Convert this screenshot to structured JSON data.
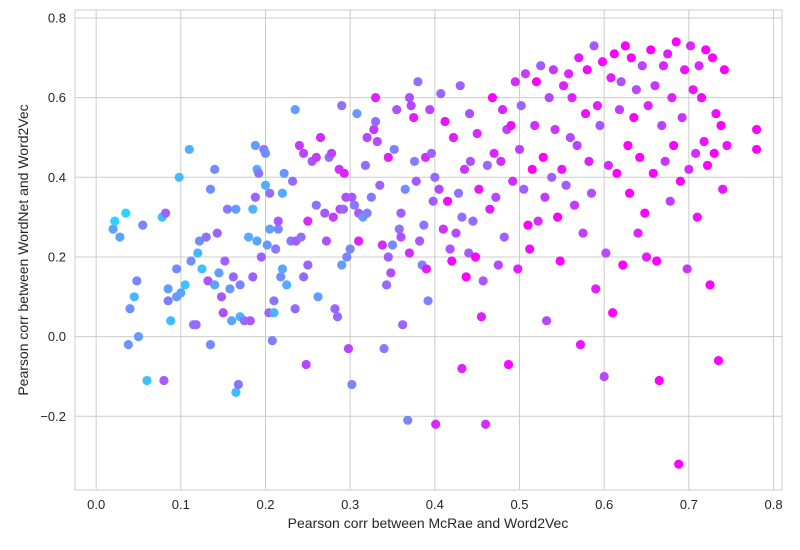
{
  "chart_data": {
    "type": "scatter",
    "title": "",
    "xlabel": "Pearson corr between McRae and Word2Vec",
    "ylabel": "Pearson corr between WordNet and Word2Vec",
    "xlim": [
      -0.025,
      0.81
    ],
    "ylim": [
      -0.385,
      0.82
    ],
    "xticks": [
      0.0,
      0.1,
      0.2,
      0.3,
      0.4,
      0.5,
      0.6,
      0.7,
      0.8
    ],
    "xtick_labels": [
      "0.0",
      "0.1",
      "0.2",
      "0.3",
      "0.4",
      "0.5",
      "0.6",
      "0.7",
      "0.8"
    ],
    "yticks": [
      -0.2,
      0.0,
      0.2,
      0.4,
      0.6,
      0.8
    ],
    "ytick_labels": [
      "−0.2",
      "0.0",
      "0.2",
      "0.4",
      "0.6",
      "0.8"
    ],
    "grid": true,
    "colormap": "cool",
    "colormap_start": "#00ffff",
    "colormap_end": "#ff00ff",
    "background_color": "#ffffff",
    "grid_color": "#cccccc",
    "points": [
      [
        0.02,
        0.27
      ],
      [
        0.022,
        0.29
      ],
      [
        0.028,
        0.25
      ],
      [
        0.035,
        0.31
      ],
      [
        0.04,
        0.07
      ],
      [
        0.045,
        0.1
      ],
      [
        0.048,
        0.14
      ],
      [
        0.05,
        0.0
      ],
      [
        0.055,
        0.28
      ],
      [
        0.038,
        -0.02
      ],
      [
        0.06,
        -0.11
      ],
      [
        0.08,
        -0.11
      ],
      [
        0.078,
        0.3
      ],
      [
        0.082,
        0.31
      ],
      [
        0.085,
        0.12
      ],
      [
        0.085,
        0.09
      ],
      [
        0.088,
        0.04
      ],
      [
        0.095,
        0.1
      ],
      [
        0.095,
        0.17
      ],
      [
        0.098,
        0.4
      ],
      [
        0.1,
        0.11
      ],
      [
        0.105,
        0.13
      ],
      [
        0.11,
        0.47
      ],
      [
        0.112,
        0.19
      ],
      [
        0.115,
        0.03
      ],
      [
        0.118,
        0.03
      ],
      [
        0.12,
        0.21
      ],
      [
        0.122,
        0.24
      ],
      [
        0.125,
        0.17
      ],
      [
        0.13,
        0.25
      ],
      [
        0.132,
        0.14
      ],
      [
        0.135,
        -0.02
      ],
      [
        0.135,
        0.37
      ],
      [
        0.14,
        0.42
      ],
      [
        0.14,
        0.13
      ],
      [
        0.143,
        0.26
      ],
      [
        0.145,
        0.16
      ],
      [
        0.148,
        0.1
      ],
      [
        0.15,
        0.06
      ],
      [
        0.152,
        0.19
      ],
      [
        0.155,
        0.32
      ],
      [
        0.158,
        0.12
      ],
      [
        0.16,
        0.04
      ],
      [
        0.162,
        0.15
      ],
      [
        0.165,
        0.32
      ],
      [
        0.165,
        -0.14
      ],
      [
        0.168,
        -0.12
      ],
      [
        0.17,
        0.05
      ],
      [
        0.17,
        0.13
      ],
      [
        0.175,
        0.04
      ],
      [
        0.18,
        0.25
      ],
      [
        0.182,
        0.04
      ],
      [
        0.185,
        0.32
      ],
      [
        0.185,
        0.15
      ],
      [
        0.188,
        0.35
      ],
      [
        0.188,
        0.48
      ],
      [
        0.19,
        0.24
      ],
      [
        0.19,
        0.42
      ],
      [
        0.192,
        0.41
      ],
      [
        0.195,
        0.2
      ],
      [
        0.198,
        0.47
      ],
      [
        0.2,
        0.46
      ],
      [
        0.2,
        0.38
      ],
      [
        0.202,
        0.23
      ],
      [
        0.204,
        0.06
      ],
      [
        0.205,
        0.27
      ],
      [
        0.205,
        0.36
      ],
      [
        0.208,
        -0.01
      ],
      [
        0.21,
        0.09
      ],
      [
        0.21,
        0.06
      ],
      [
        0.212,
        0.22
      ],
      [
        0.215,
        0.27
      ],
      [
        0.215,
        0.29
      ],
      [
        0.218,
        0.15
      ],
      [
        0.22,
        0.36
      ],
      [
        0.22,
        0.17
      ],
      [
        0.222,
        0.41
      ],
      [
        0.225,
        0.13
      ],
      [
        0.23,
        0.24
      ],
      [
        0.232,
        0.39
      ],
      [
        0.235,
        0.07
      ],
      [
        0.235,
        0.57
      ],
      [
        0.236,
        0.24
      ],
      [
        0.24,
        0.48
      ],
      [
        0.242,
        0.25
      ],
      [
        0.245,
        0.46
      ],
      [
        0.245,
        0.15
      ],
      [
        0.248,
        -0.07
      ],
      [
        0.25,
        0.18
      ],
      [
        0.25,
        0.29
      ],
      [
        0.255,
        0.44
      ],
      [
        0.26,
        0.45
      ],
      [
        0.26,
        0.33
      ],
      [
        0.262,
        0.1
      ],
      [
        0.265,
        0.5
      ],
      [
        0.27,
        0.31
      ],
      [
        0.272,
        0.24
      ],
      [
        0.275,
        0.45
      ],
      [
        0.278,
        0.46
      ],
      [
        0.28,
        0.3
      ],
      [
        0.282,
        0.07
      ],
      [
        0.285,
        0.05
      ],
      [
        0.287,
        0.42
      ],
      [
        0.288,
        0.32
      ],
      [
        0.29,
        0.18
      ],
      [
        0.29,
        0.58
      ],
      [
        0.292,
        0.32
      ],
      [
        0.293,
        0.41
      ],
      [
        0.295,
        0.35
      ],
      [
        0.296,
        0.2
      ],
      [
        0.298,
        -0.03
      ],
      [
        0.3,
        0.22
      ],
      [
        0.302,
        -0.12
      ],
      [
        0.302,
        0.35
      ],
      [
        0.305,
        0.33
      ],
      [
        0.308,
        0.56
      ],
      [
        0.31,
        0.24
      ],
      [
        0.31,
        0.31
      ],
      [
        0.315,
        0.3
      ],
      [
        0.318,
        0.43
      ],
      [
        0.32,
        0.31
      ],
      [
        0.32,
        0.5
      ],
      [
        0.325,
        0.35
      ],
      [
        0.328,
        0.52
      ],
      [
        0.33,
        0.54
      ],
      [
        0.33,
        0.6
      ],
      [
        0.332,
        0.49
      ],
      [
        0.335,
        0.38
      ],
      [
        0.338,
        0.23
      ],
      [
        0.34,
        -0.03
      ],
      [
        0.343,
        0.13
      ],
      [
        0.345,
        0.2
      ],
      [
        0.345,
        0.45
      ],
      [
        0.348,
        0.16
      ],
      [
        0.35,
        0.23
      ],
      [
        0.352,
        0.47
      ],
      [
        0.355,
        0.57
      ],
      [
        0.358,
        0.27
      ],
      [
        0.36,
        0.31
      ],
      [
        0.36,
        0.25
      ],
      [
        0.362,
        0.03
      ],
      [
        0.365,
        0.37
      ],
      [
        0.368,
        -0.21
      ],
      [
        0.37,
        0.21
      ],
      [
        0.37,
        0.6
      ],
      [
        0.372,
        0.58
      ],
      [
        0.375,
        0.55
      ],
      [
        0.376,
        0.44
      ],
      [
        0.378,
        0.39
      ],
      [
        0.38,
        0.64
      ],
      [
        0.382,
        0.24
      ],
      [
        0.385,
        0.18
      ],
      [
        0.387,
        0.28
      ],
      [
        0.389,
        0.45
      ],
      [
        0.39,
        0.17
      ],
      [
        0.392,
        0.09
      ],
      [
        0.394,
        0.57
      ],
      [
        0.396,
        0.46
      ],
      [
        0.398,
        0.34
      ],
      [
        0.4,
        0.4
      ],
      [
        0.401,
        -0.22
      ],
      [
        0.405,
        0.37
      ],
      [
        0.407,
        0.61
      ],
      [
        0.41,
        0.27
      ],
      [
        0.412,
        0.54
      ],
      [
        0.415,
        0.34
      ],
      [
        0.418,
        0.22
      ],
      [
        0.42,
        0.19
      ],
      [
        0.422,
        0.5
      ],
      [
        0.425,
        0.26
      ],
      [
        0.428,
        0.36
      ],
      [
        0.43,
        0.63
      ],
      [
        0.432,
        0.3
      ],
      [
        0.432,
        -0.08
      ],
      [
        0.435,
        0.42
      ],
      [
        0.437,
        0.15
      ],
      [
        0.44,
        0.21
      ],
      [
        0.441,
        0.56
      ],
      [
        0.442,
        0.44
      ],
      [
        0.445,
        0.29
      ],
      [
        0.448,
        0.2
      ],
      [
        0.45,
        0.51
      ],
      [
        0.452,
        0.37
      ],
      [
        0.455,
        0.05
      ],
      [
        0.457,
        0.14
      ],
      [
        0.46,
        -0.22
      ],
      [
        0.462,
        0.43
      ],
      [
        0.465,
        0.32
      ],
      [
        0.468,
        0.6
      ],
      [
        0.47,
        0.46
      ],
      [
        0.472,
        0.35
      ],
      [
        0.475,
        0.18
      ],
      [
        0.478,
        0.44
      ],
      [
        0.48,
        0.57
      ],
      [
        0.482,
        0.25
      ],
      [
        0.485,
        0.52
      ],
      [
        0.487,
        -0.07
      ],
      [
        0.49,
        0.53
      ],
      [
        0.492,
        0.39
      ],
      [
        0.495,
        0.64
      ],
      [
        0.498,
        0.17
      ],
      [
        0.5,
        0.47
      ],
      [
        0.502,
        0.58
      ],
      [
        0.505,
        0.37
      ],
      [
        0.507,
        0.66
      ],
      [
        0.51,
        0.28
      ],
      [
        0.512,
        0.22
      ],
      [
        0.515,
        0.42
      ],
      [
        0.518,
        0.53
      ],
      [
        0.52,
        0.64
      ],
      [
        0.522,
        0.29
      ],
      [
        0.525,
        0.68
      ],
      [
        0.528,
        0.45
      ],
      [
        0.53,
        0.35
      ],
      [
        0.532,
        0.04
      ],
      [
        0.535,
        0.6
      ],
      [
        0.538,
        0.4
      ],
      [
        0.54,
        0.67
      ],
      [
        0.542,
        0.52
      ],
      [
        0.545,
        0.3
      ],
      [
        0.548,
        0.19
      ],
      [
        0.55,
        0.42
      ],
      [
        0.552,
        0.63
      ],
      [
        0.555,
        0.38
      ],
      [
        0.558,
        0.66
      ],
      [
        0.56,
        0.5
      ],
      [
        0.562,
        0.6
      ],
      [
        0.565,
        0.33
      ],
      [
        0.568,
        0.48
      ],
      [
        0.57,
        0.7
      ],
      [
        0.572,
        -0.02
      ],
      [
        0.575,
        0.26
      ],
      [
        0.578,
        0.56
      ],
      [
        0.58,
        0.67
      ],
      [
        0.582,
        0.44
      ],
      [
        0.585,
        0.36
      ],
      [
        0.588,
        0.73
      ],
      [
        0.59,
        0.12
      ],
      [
        0.592,
        0.58
      ],
      [
        0.595,
        0.53
      ],
      [
        0.598,
        0.69
      ],
      [
        0.6,
        -0.1
      ],
      [
        0.602,
        0.21
      ],
      [
        0.605,
        0.43
      ],
      [
        0.608,
        0.65
      ],
      [
        0.61,
        0.06
      ],
      [
        0.612,
        0.71
      ],
      [
        0.615,
        0.41
      ],
      [
        0.618,
        0.57
      ],
      [
        0.62,
        0.64
      ],
      [
        0.622,
        0.18
      ],
      [
        0.625,
        0.73
      ],
      [
        0.628,
        0.48
      ],
      [
        0.63,
        0.36
      ],
      [
        0.632,
        0.7
      ],
      [
        0.635,
        0.55
      ],
      [
        0.638,
        0.62
      ],
      [
        0.64,
        0.26
      ],
      [
        0.642,
        0.45
      ],
      [
        0.645,
        0.68
      ],
      [
        0.648,
        0.31
      ],
      [
        0.65,
        0.2
      ],
      [
        0.652,
        0.58
      ],
      [
        0.655,
        0.72
      ],
      [
        0.658,
        0.41
      ],
      [
        0.66,
        0.63
      ],
      [
        0.662,
        0.19
      ],
      [
        0.665,
        -0.11
      ],
      [
        0.668,
        0.53
      ],
      [
        0.67,
        0.68
      ],
      [
        0.672,
        0.44
      ],
      [
        0.675,
        0.71
      ],
      [
        0.678,
        0.34
      ],
      [
        0.68,
        0.6
      ],
      [
        0.682,
        0.48
      ],
      [
        0.685,
        0.74
      ],
      [
        0.688,
        -0.32
      ],
      [
        0.69,
        0.39
      ],
      [
        0.692,
        0.55
      ],
      [
        0.695,
        0.67
      ],
      [
        0.698,
        0.17
      ],
      [
        0.7,
        0.42
      ],
      [
        0.702,
        0.73
      ],
      [
        0.705,
        0.62
      ],
      [
        0.708,
        0.46
      ],
      [
        0.71,
        0.3
      ],
      [
        0.712,
        0.68
      ],
      [
        0.715,
        0.6
      ],
      [
        0.718,
        0.49
      ],
      [
        0.72,
        0.72
      ],
      [
        0.722,
        0.43
      ],
      [
        0.725,
        0.13
      ],
      [
        0.728,
        0.7
      ],
      [
        0.73,
        0.46
      ],
      [
        0.732,
        0.56
      ],
      [
        0.735,
        -0.06
      ],
      [
        0.738,
        0.53
      ],
      [
        0.74,
        0.37
      ],
      [
        0.742,
        0.67
      ],
      [
        0.745,
        0.48
      ],
      [
        0.78,
        0.52
      ],
      [
        0.78,
        0.47
      ]
    ]
  }
}
